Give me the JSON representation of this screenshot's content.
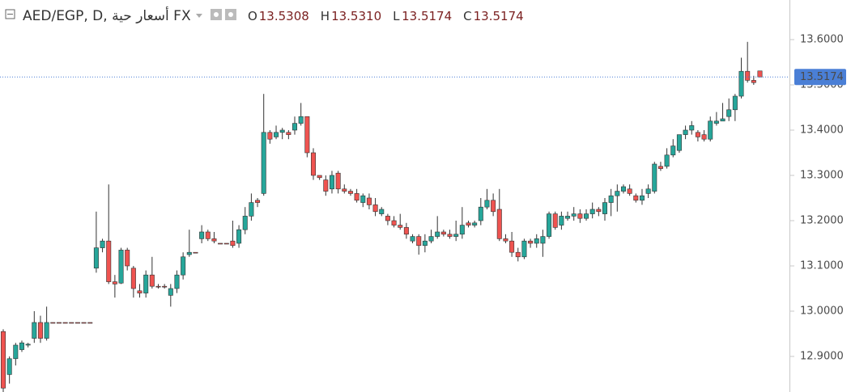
{
  "chart_data": {
    "type": "candlestick",
    "title": "AED/EGP, D, أسعار حية FX",
    "legend": [
      {
        "key": "O",
        "label": "13.5308"
      },
      {
        "key": "H",
        "label": "13.5310"
      },
      {
        "key": "L",
        "label": "13.5174"
      },
      {
        "key": "C",
        "label": "13.5174"
      }
    ],
    "last_price_label": "13.5174",
    "up_color": "#26a69a",
    "down_color": "#ef5350",
    "last_line_color": "#4a7fd6",
    "ylim": [
      12.8214,
      13.6875
    ],
    "yticks": [
      {
        "value": 12.9,
        "label": "12.9000"
      },
      {
        "value": 13.0,
        "label": "13.0000"
      },
      {
        "value": 13.1,
        "label": "13.1000"
      },
      {
        "value": 13.2,
        "label": "13.2000"
      },
      {
        "value": 13.3,
        "label": "13.3000"
      },
      {
        "value": 13.4,
        "label": "13.4000"
      },
      {
        "value": 13.5,
        "label": "13.5000"
      },
      {
        "value": 13.6,
        "label": "13.6000"
      }
    ],
    "series": [
      {
        "open": [
          12.955,
          12.86,
          12.895,
          12.915,
          12.925,
          12.94,
          12.975,
          12.94,
          12.975,
          12.975,
          12.975,
          12.975,
          12.975,
          12.975,
          12.975,
          13.095,
          13.14,
          13.155,
          13.065,
          13.062,
          13.135,
          13.095,
          13.045,
          13.04,
          13.08,
          13.055,
          13.055,
          13.035,
          13.05,
          13.08,
          13.125,
          13.13,
          13.16,
          13.175,
          13.16,
          13.15,
          13.15,
          13.155,
          13.15,
          13.18,
          13.21,
          13.245,
          13.26,
          13.395,
          13.385,
          13.395,
          13.395,
          13.4,
          13.415,
          13.43,
          13.35,
          13.3,
          13.29,
          13.27,
          13.305,
          13.27,
          13.265,
          13.26,
          13.24,
          13.25,
          13.235,
          13.215,
          13.21,
          13.2,
          13.19,
          13.185,
          13.155,
          13.165,
          13.145,
          13.155,
          13.165,
          13.175,
          13.17,
          13.165,
          13.17,
          13.195,
          13.19,
          13.2,
          13.23,
          13.245,
          13.225,
          13.16,
          13.155,
          13.13,
          13.12,
          13.155,
          13.15,
          13.15,
          13.165,
          13.215,
          13.19,
          13.205,
          13.21,
          13.215,
          13.205,
          13.215,
          13.225,
          13.215,
          13.24,
          13.255,
          13.265,
          13.27,
          13.255,
          13.245,
          13.26,
          13.265,
          13.32,
          13.32,
          13.345,
          13.355,
          13.39,
          13.4,
          13.395,
          13.39,
          13.38,
          13.415,
          13.42,
          13.43,
          13.445,
          13.475,
          13.53,
          13.51,
          13.5308
        ],
        "high": [
          12.96,
          12.9,
          12.93,
          12.935,
          12.93,
          13.0,
          12.99,
          13.01,
          12.975,
          12.975,
          12.975,
          12.975,
          12.975,
          12.975,
          12.975,
          13.22,
          13.16,
          13.28,
          13.08,
          13.14,
          13.14,
          13.1,
          13.06,
          13.09,
          13.12,
          13.06,
          13.06,
          13.06,
          13.09,
          13.13,
          13.18,
          13.13,
          13.19,
          13.18,
          13.175,
          13.15,
          13.15,
          13.2,
          13.19,
          13.23,
          13.26,
          13.25,
          13.48,
          13.4,
          13.41,
          13.405,
          13.4,
          13.43,
          13.46,
          13.43,
          13.36,
          13.3,
          13.3,
          13.31,
          13.31,
          13.28,
          13.27,
          13.27,
          13.26,
          13.26,
          13.25,
          13.23,
          13.215,
          13.21,
          13.215,
          13.195,
          13.17,
          13.17,
          13.17,
          13.18,
          13.21,
          13.18,
          13.18,
          13.2,
          13.23,
          13.2,
          13.2,
          13.25,
          13.27,
          13.26,
          13.27,
          13.17,
          13.175,
          13.14,
          13.16,
          13.16,
          13.17,
          13.18,
          13.22,
          13.22,
          13.22,
          13.22,
          13.23,
          13.225,
          13.225,
          13.24,
          13.23,
          13.25,
          13.27,
          13.28,
          13.28,
          13.28,
          13.26,
          13.27,
          13.28,
          13.33,
          13.33,
          13.36,
          13.38,
          13.39,
          13.41,
          13.42,
          13.4,
          13.4,
          13.43,
          13.44,
          13.46,
          13.47,
          13.48,
          13.56,
          13.595,
          13.52,
          13.531
        ],
        "low": [
          12.82,
          12.84,
          12.88,
          12.91,
          12.92,
          12.93,
          12.93,
          12.935,
          12.975,
          12.975,
          12.975,
          12.975,
          12.975,
          12.975,
          12.975,
          13.085,
          13.13,
          13.06,
          13.03,
          13.06,
          13.09,
          13.03,
          13.03,
          13.03,
          13.05,
          13.05,
          13.05,
          13.01,
          13.04,
          13.07,
          13.12,
          13.13,
          13.15,
          13.155,
          13.15,
          13.15,
          13.15,
          13.14,
          13.14,
          13.17,
          13.2,
          13.23,
          13.255,
          13.37,
          13.38,
          13.38,
          13.38,
          13.39,
          13.41,
          13.34,
          13.29,
          13.29,
          13.255,
          13.26,
          13.26,
          13.26,
          13.255,
          13.24,
          13.23,
          13.225,
          13.21,
          13.21,
          13.19,
          13.185,
          13.18,
          13.16,
          13.15,
          13.125,
          13.13,
          13.15,
          13.16,
          13.165,
          13.16,
          13.155,
          13.16,
          13.185,
          13.185,
          13.19,
          13.225,
          13.21,
          13.155,
          13.15,
          13.12,
          13.11,
          13.115,
          13.14,
          13.14,
          13.12,
          13.16,
          13.18,
          13.18,
          13.2,
          13.2,
          13.195,
          13.2,
          13.205,
          13.21,
          13.2,
          13.21,
          13.22,
          13.26,
          13.255,
          13.24,
          13.235,
          13.25,
          13.26,
          13.31,
          13.315,
          13.34,
          13.35,
          13.38,
          13.39,
          13.375,
          13.375,
          13.375,
          13.41,
          13.42,
          13.42,
          13.42,
          13.47,
          13.505,
          13.5,
          13.5174
        ],
        "close": [
          12.83,
          12.895,
          12.925,
          12.93,
          12.927,
          12.975,
          12.94,
          12.975,
          12.975,
          12.975,
          12.975,
          12.975,
          12.975,
          12.975,
          12.975,
          13.14,
          13.155,
          13.065,
          13.06,
          13.135,
          13.1,
          13.05,
          13.04,
          13.08,
          13.055,
          13.055,
          13.055,
          13.05,
          13.08,
          13.12,
          13.13,
          13.13,
          13.175,
          13.16,
          13.155,
          13.15,
          13.15,
          13.145,
          13.18,
          13.21,
          13.24,
          13.24,
          13.395,
          13.38,
          13.395,
          13.4,
          13.39,
          13.415,
          13.43,
          13.35,
          13.3,
          13.295,
          13.265,
          13.3,
          13.27,
          13.265,
          13.26,
          13.245,
          13.255,
          13.235,
          13.22,
          13.225,
          13.2,
          13.19,
          13.185,
          13.17,
          13.165,
          13.145,
          13.155,
          13.165,
          13.175,
          13.17,
          13.165,
          13.17,
          13.19,
          13.19,
          13.195,
          13.23,
          13.245,
          13.22,
          13.16,
          13.155,
          13.13,
          13.12,
          13.155,
          13.15,
          13.16,
          13.165,
          13.215,
          13.185,
          13.21,
          13.21,
          13.215,
          13.205,
          13.215,
          13.225,
          13.22,
          13.24,
          13.255,
          13.265,
          13.275,
          13.26,
          13.245,
          13.255,
          13.27,
          13.325,
          13.315,
          13.345,
          13.365,
          13.39,
          13.4,
          13.41,
          13.385,
          13.38,
          13.42,
          13.42,
          13.425,
          13.445,
          13.475,
          13.53,
          13.51,
          13.505,
          13.5174
        ]
      }
    ]
  }
}
